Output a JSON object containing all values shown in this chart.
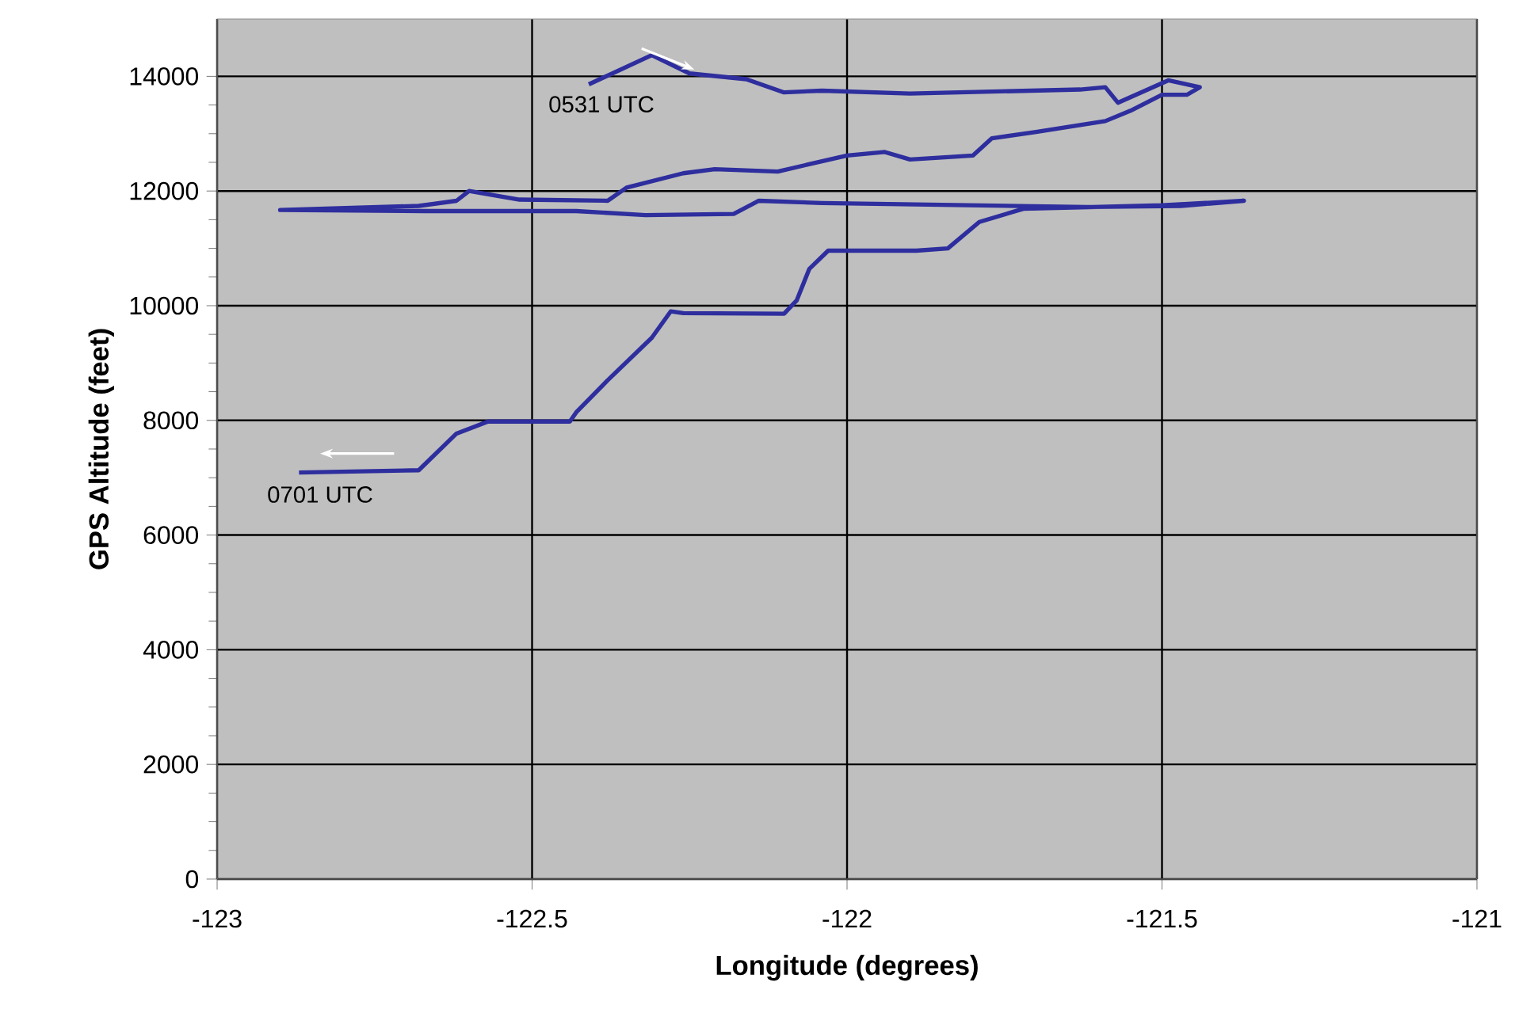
{
  "chart_data": {
    "type": "line",
    "xlabel": "Longitude (degrees)",
    "ylabel": "GPS Altitude (feet)",
    "xlim": [
      -123,
      -121
    ],
    "ylim": [
      0,
      15000
    ],
    "xticks": [
      -123,
      -122.5,
      -122,
      -121.5,
      -121
    ],
    "yticks": [
      0,
      2000,
      4000,
      6000,
      8000,
      10000,
      12000,
      14000
    ],
    "grid": true,
    "marker": "none",
    "line_style": "solid",
    "annotations": [
      {
        "text": "0531 UTC",
        "x": -122.41,
        "y": 13860
      },
      {
        "text": "0701 UTC",
        "x": -122.87,
        "y": 7090
      }
    ],
    "series": [
      {
        "color": "#2e2e9e",
        "x": [
          -122.41,
          -122.31,
          -122.25,
          -122.16,
          -122.1,
          -122.04,
          -121.9,
          -121.63,
          -121.59,
          -121.57,
          -121.49,
          -121.44,
          -121.46,
          -121.5,
          -121.55,
          -121.59,
          -121.7,
          -121.77,
          -121.8,
          -121.9,
          -121.94,
          -122.0,
          -122.11,
          -122.21,
          -122.26,
          -122.35,
          -122.38,
          -122.52,
          -122.6,
          -122.62,
          -122.68,
          -122.9,
          -122.67,
          -122.43,
          -122.32,
          -122.18,
          -122.14,
          -122.04,
          -121.62,
          -121.47,
          -121.37,
          -121.5,
          -121.72,
          -121.79,
          -121.84,
          -121.89,
          -122.03,
          -122.06,
          -122.08,
          -122.1,
          -122.26,
          -122.28,
          -122.31,
          -122.38,
          -122.43,
          -122.44,
          -122.57,
          -122.62,
          -122.68,
          -122.87
        ],
        "values": [
          13860,
          14370,
          14050,
          13950,
          13720,
          13750,
          13700,
          13770,
          13810,
          13540,
          13930,
          13810,
          13680,
          13680,
          13400,
          13220,
          13030,
          12920,
          12620,
          12550,
          12680,
          12620,
          12340,
          12380,
          12310,
          12060,
          11830,
          11850,
          12000,
          11830,
          11740,
          11670,
          11650,
          11650,
          11580,
          11600,
          11830,
          11790,
          11720,
          11740,
          11830,
          11750,
          11690,
          11460,
          11000,
          10960,
          10960,
          10640,
          10090,
          9860,
          9870,
          9900,
          9440,
          8700,
          8140,
          7980,
          7980,
          7770,
          7130,
          7090
        ]
      }
    ]
  }
}
